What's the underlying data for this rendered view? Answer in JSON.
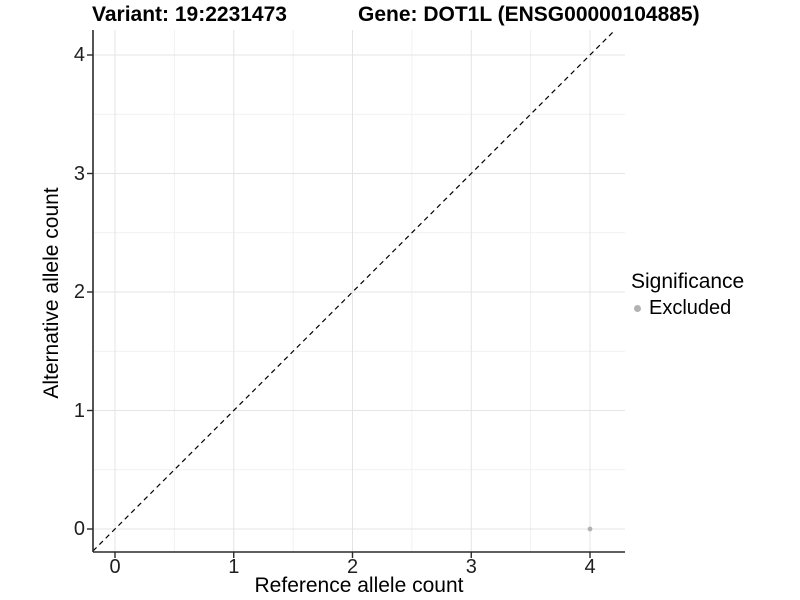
{
  "title": {
    "left": "Variant: 19:2231473",
    "right": "Gene: DOT1L (ENSG00000104885)"
  },
  "x_axis": {
    "label": "Reference allele count"
  },
  "y_axis": {
    "label": "Alternative allele count"
  },
  "legend": {
    "title": "Significance",
    "items": [
      {
        "label": "Excluded",
        "color": "#b2b2b2"
      }
    ]
  },
  "chart_data": {
    "type": "scatter",
    "title": "Variant: 19:2231473 — Gene: DOT1L (ENSG00000104885)",
    "xlabel": "Reference allele count",
    "ylabel": "Alternative allele count",
    "xticks": [
      0,
      1,
      2,
      3,
      4
    ],
    "yticks": [
      0,
      1,
      2,
      3,
      4
    ],
    "xlim": [
      -0.19,
      4.3
    ],
    "ylim": [
      -0.19,
      4.21
    ],
    "grid": {
      "major": true,
      "minor": true
    },
    "legend_position": "right-center",
    "series": [
      {
        "name": "Excluded",
        "color": "#b2b2b2",
        "marker": "circle",
        "points": [
          {
            "x": 4,
            "y": 0
          }
        ]
      }
    ],
    "reference_line": {
      "kind": "identity y=x",
      "style": "dashed",
      "color": "#000000"
    }
  },
  "colors": {
    "background": "#ffffff",
    "grid_major": "#e4e4e4",
    "grid_minor": "#f1f1f1",
    "axis_line": "#2a2a2a",
    "point": "#b2b2b2",
    "ref_line": "#000000"
  }
}
